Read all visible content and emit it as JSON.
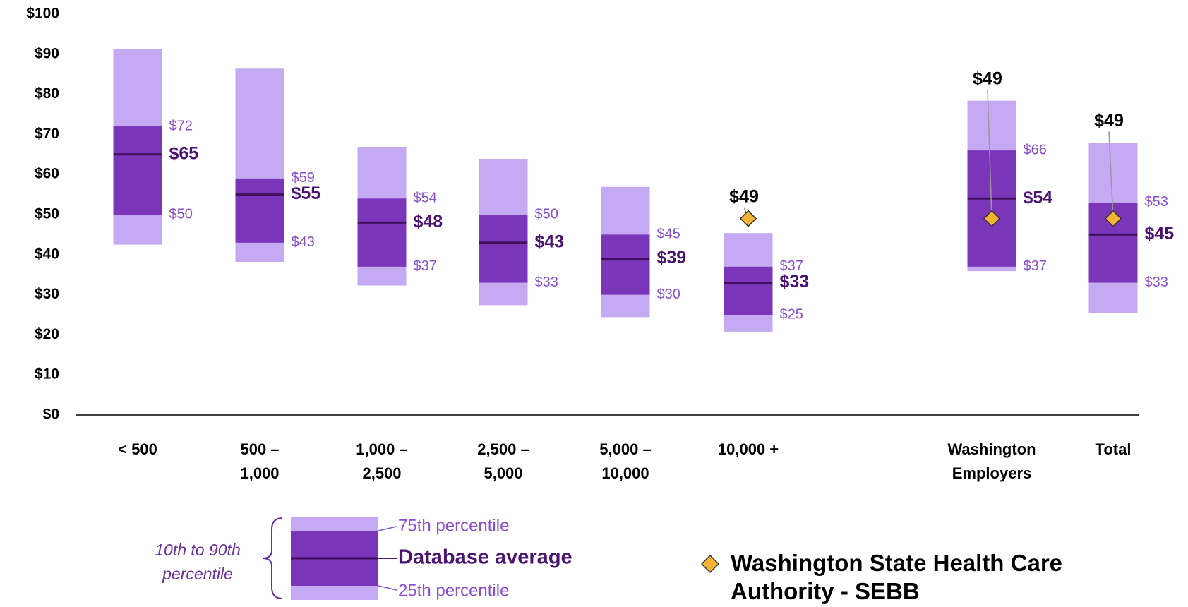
{
  "chart_data": {
    "type": "percentile_range",
    "categories": [
      "< 500",
      "500 – 1,000",
      "1,000 – 2,500",
      "2,500 – 5,000",
      "5,000 – 10,000",
      "10,000 +",
      "Washington Employers",
      "Total"
    ],
    "range": {
      "name": "10th to 90th percentile",
      "color": "#c5a9f2",
      "low": [
        42.5,
        38.2,
        32.3,
        27.4,
        24.4,
        20.8,
        35.9,
        25.5
      ],
      "high": [
        91.3,
        86.4,
        66.9,
        63.9,
        56.9,
        45.4,
        78.4,
        67.9
      ]
    },
    "inner_color": "#7b35b8",
    "series": [
      {
        "name": "75th percentile",
        "color": "#8a4fcf",
        "values": [
          72,
          59,
          54,
          50,
          45,
          37,
          66,
          53
        ],
        "value_labels": [
          "$72",
          "$59",
          "$54",
          "$50",
          "$45",
          "$37",
          "$66",
          "$53"
        ]
      },
      {
        "name": "Database average",
        "color": "#3f0f5c",
        "values": [
          65,
          55,
          48,
          43,
          39,
          33,
          54,
          45
        ],
        "value_labels": [
          "$65",
          "$55",
          "$48",
          "$43",
          "$39",
          "$33",
          "$54",
          "$45"
        ]
      },
      {
        "name": "25th percentile",
        "color": "#8a4fcf",
        "values": [
          50,
          43,
          37,
          33,
          30,
          25,
          37,
          33
        ],
        "value_labels": [
          "$50",
          "$43",
          "$37",
          "$33",
          "$30",
          "$25",
          "$37",
          "$33"
        ]
      },
      {
        "name": "Washington State Health Care Authority - SEBB",
        "color": "#f5b335",
        "values": [
          null,
          null,
          null,
          null,
          null,
          49,
          49,
          49
        ],
        "value_labels": [
          null,
          null,
          null,
          null,
          null,
          "$49",
          "$49",
          "$49"
        ]
      }
    ],
    "ylim": [
      0,
      100
    ],
    "yticks": [
      {
        "value": 0,
        "label": "$0"
      },
      {
        "value": 10,
        "label": "$10"
      },
      {
        "value": 20,
        "label": "$20"
      },
      {
        "value": 30,
        "label": "$30"
      },
      {
        "value": 40,
        "label": "$40"
      },
      {
        "value": 50,
        "label": "$50"
      },
      {
        "value": 60,
        "label": "$60"
      },
      {
        "value": 70,
        "label": "$70"
      },
      {
        "value": 80,
        "label": "$80"
      },
      {
        "value": 90,
        "label": "$90"
      },
      {
        "value": 100,
        "label": "$100"
      }
    ]
  }
}
